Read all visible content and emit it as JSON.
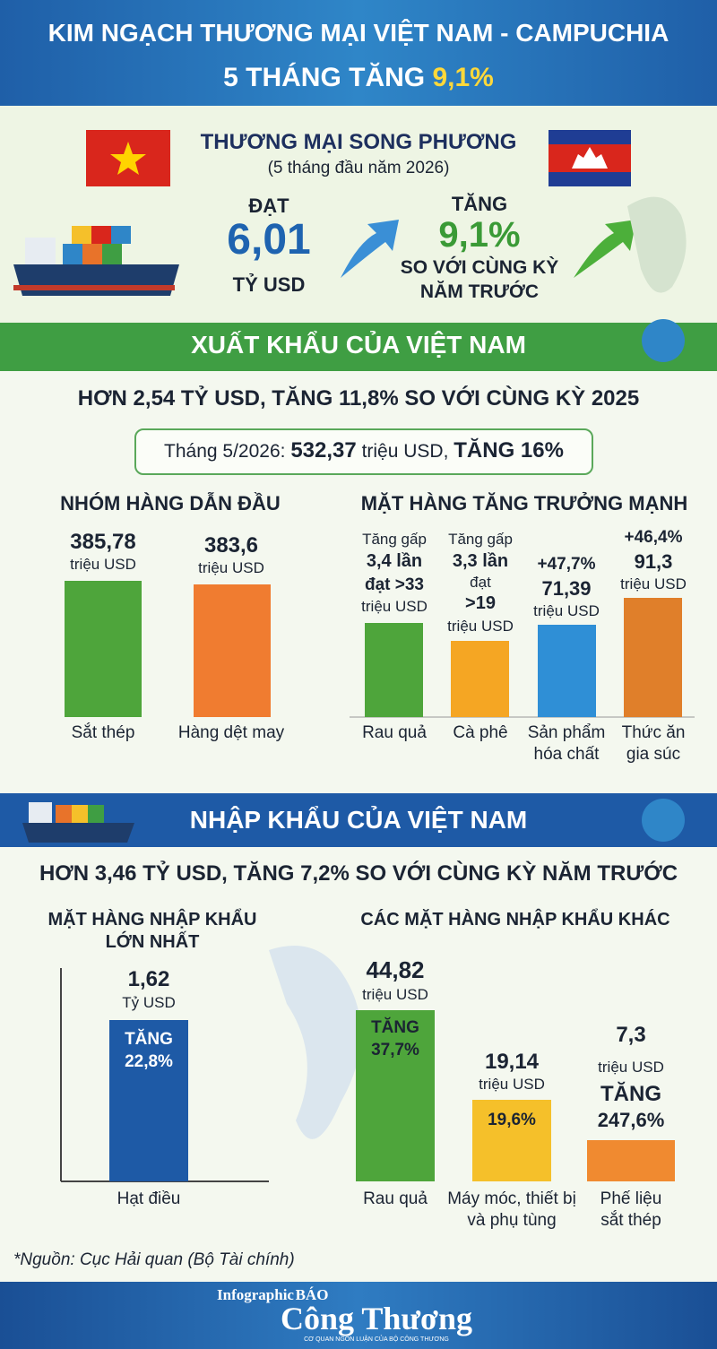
{
  "header": {
    "title_line1": "KIM NGẠCH THƯƠNG MẠI VIỆT NAM - CAMPUCHIA",
    "title_line2": "5 THÁNG TĂNG",
    "title_highlight": "9,1%"
  },
  "bilateral": {
    "title": "THƯƠNG MẠI SONG PHƯƠNG",
    "period": "(5 tháng đầu năm 2026)",
    "reach_label": "ĐẠT",
    "reach_value": "6,01",
    "reach_unit": "TỶ USD",
    "growth_label": "TĂNG",
    "growth_value": "9,1%",
    "growth_note": [
      "SO VỚI CÙNG KỲ",
      "NĂM TRƯỚC"
    ]
  },
  "export": {
    "title": "XUẤT KHẨU CỦA VIỆT NAM",
    "summary": "HƠN 2,54 TỶ USD, TĂNG 11,8% SO VỚI CÙNG KỲ 2025",
    "month": {
      "label": "Tháng 5/2026:",
      "value": "532,37",
      "unit": "triệu USD,",
      "growth": "TĂNG 16%"
    },
    "leading": {
      "title": "NHÓM HÀNG DẪN ĐẦU",
      "items": [
        {
          "lines": [
            "385,78",
            "triệu USD"
          ],
          "label": [
            "Sắt thép"
          ]
        },
        {
          "lines": [
            "383,6",
            "triệu USD"
          ],
          "label": [
            "Hàng dệt may"
          ]
        }
      ]
    },
    "growing": {
      "title": "MẶT HÀNG TĂNG TRƯỞNG MẠNH",
      "items": [
        {
          "lines": [
            "Tăng gấp",
            "3,4 lần",
            "đạt >33",
            "triệu USD"
          ],
          "label": [
            "Rau quả"
          ]
        },
        {
          "lines": [
            "Tăng gấp",
            "3,3 lần",
            "đạt",
            ">19",
            "triệu USD"
          ],
          "label": [
            "Cà phê"
          ]
        },
        {
          "lines": [
            "+47,7%",
            "71,39",
            "triệu USD"
          ],
          "label": [
            "Sản phẩm",
            "hóa chất"
          ]
        },
        {
          "lines": [
            "+46,4%",
            "91,3",
            "triệu USD"
          ],
          "label": [
            "Thức ăn",
            "gia súc"
          ]
        }
      ]
    }
  },
  "import": {
    "title": "NHẬP KHẨU CỦA VIỆT NAM",
    "summary": "HƠN 3,46 TỶ USD, TĂNG 7,2% SO VỚI CÙNG KỲ NĂM TRƯỚC",
    "largest": {
      "title": [
        "MẶT HÀNG NHẬP KHẨU",
        "LỚN NHẤT"
      ],
      "items": [
        {
          "lines": [
            "1,62",
            "Tỷ USD"
          ],
          "bar_lines": [
            "TĂNG",
            "22,8%"
          ],
          "label": [
            "Hạt điều"
          ]
        }
      ]
    },
    "others": {
      "title": "CÁC MẶT HÀNG NHẬP KHẨU KHÁC",
      "items": [
        {
          "lines": [
            "44,82",
            "triệu USD"
          ],
          "bar_lines": [
            "TĂNG",
            "37,7%"
          ],
          "label": [
            "Rau quả"
          ]
        },
        {
          "lines": [
            "19,14",
            "triệu USD"
          ],
          "bar_lines": [
            "19,6%"
          ],
          "label": [
            "Máy móc, thiết bị",
            "và phụ tùng"
          ]
        },
        {
          "lines": [
            "7,3",
            "triệu USD",
            "TĂNG",
            "247,6%"
          ],
          "bar_lines": [],
          "label": [
            "Phế liệu",
            "sắt thép"
          ]
        }
      ]
    }
  },
  "footer": {
    "source": "*Nguồn: Cục Hải quan (Bộ Tài chính)",
    "brand_tag": "Infographic",
    "brand_small": "BÁO",
    "brand_name": "Công Thương",
    "brand_slogan": "CƠ QUAN NGÔN LUẬN CỦA BỘ CÔNG THƯƠNG"
  }
}
